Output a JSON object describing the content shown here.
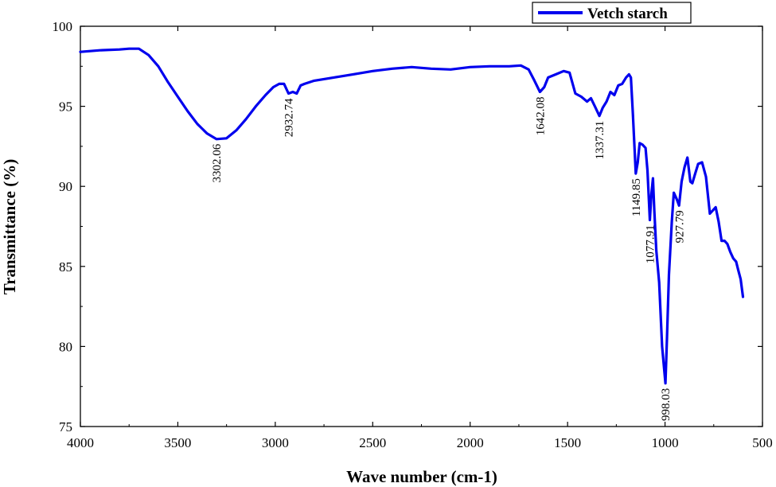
{
  "chart_data": {
    "type": "line",
    "xlabel": "Wave number (cm-1)",
    "ylabel": "Transmittance (%)",
    "xlim": [
      4000,
      500
    ],
    "ylim": [
      75,
      100
    ],
    "x_reversed": true,
    "x_ticks": [
      4000,
      3500,
      3000,
      2500,
      2000,
      1500,
      1000,
      500
    ],
    "y_ticks": [
      75,
      80,
      85,
      90,
      95,
      100
    ],
    "grid": false,
    "legend_position": "top-right",
    "series": [
      {
        "name": "Vetch starch",
        "color": "#0000ee",
        "points": [
          [
            4000,
            98.4
          ],
          [
            3900,
            98.5
          ],
          [
            3800,
            98.55
          ],
          [
            3750,
            98.6
          ],
          [
            3700,
            98.6
          ],
          [
            3650,
            98.2
          ],
          [
            3600,
            97.5
          ],
          [
            3550,
            96.5
          ],
          [
            3500,
            95.6
          ],
          [
            3450,
            94.7
          ],
          [
            3400,
            93.9
          ],
          [
            3350,
            93.3
          ],
          [
            3302,
            92.95
          ],
          [
            3250,
            93.0
          ],
          [
            3200,
            93.5
          ],
          [
            3150,
            94.2
          ],
          [
            3100,
            95.0
          ],
          [
            3050,
            95.7
          ],
          [
            3010,
            96.2
          ],
          [
            2980,
            96.4
          ],
          [
            2955,
            96.4
          ],
          [
            2932,
            95.8
          ],
          [
            2910,
            95.9
          ],
          [
            2890,
            95.8
          ],
          [
            2870,
            96.3
          ],
          [
            2850,
            96.4
          ],
          [
            2800,
            96.6
          ],
          [
            2700,
            96.8
          ],
          [
            2600,
            97.0
          ],
          [
            2500,
            97.2
          ],
          [
            2400,
            97.35
          ],
          [
            2300,
            97.45
          ],
          [
            2200,
            97.35
          ],
          [
            2100,
            97.3
          ],
          [
            2000,
            97.45
          ],
          [
            1900,
            97.5
          ],
          [
            1800,
            97.5
          ],
          [
            1740,
            97.55
          ],
          [
            1700,
            97.3
          ],
          [
            1670,
            96.6
          ],
          [
            1642,
            95.9
          ],
          [
            1620,
            96.2
          ],
          [
            1600,
            96.8
          ],
          [
            1560,
            97.0
          ],
          [
            1520,
            97.2
          ],
          [
            1490,
            97.1
          ],
          [
            1460,
            95.8
          ],
          [
            1430,
            95.6
          ],
          [
            1400,
            95.3
          ],
          [
            1380,
            95.5
          ],
          [
            1360,
            95.0
          ],
          [
            1337,
            94.4
          ],
          [
            1320,
            94.9
          ],
          [
            1300,
            95.3
          ],
          [
            1280,
            95.9
          ],
          [
            1260,
            95.7
          ],
          [
            1240,
            96.3
          ],
          [
            1220,
            96.4
          ],
          [
            1200,
            96.8
          ],
          [
            1185,
            97.0
          ],
          [
            1175,
            96.8
          ],
          [
            1165,
            94.5
          ],
          [
            1150,
            90.8
          ],
          [
            1140,
            91.5
          ],
          [
            1130,
            92.7
          ],
          [
            1115,
            92.6
          ],
          [
            1100,
            92.4
          ],
          [
            1090,
            91.0
          ],
          [
            1078,
            87.9
          ],
          [
            1070,
            89.5
          ],
          [
            1062,
            90.5
          ],
          [
            1055,
            88.5
          ],
          [
            1045,
            86.0
          ],
          [
            1030,
            84.0
          ],
          [
            1015,
            80.0
          ],
          [
            998,
            77.7
          ],
          [
            990,
            80.5
          ],
          [
            980,
            84.5
          ],
          [
            965,
            87.8
          ],
          [
            955,
            89.6
          ],
          [
            940,
            89.2
          ],
          [
            928,
            88.8
          ],
          [
            915,
            90.3
          ],
          [
            900,
            91.2
          ],
          [
            885,
            91.8
          ],
          [
            870,
            90.3
          ],
          [
            860,
            90.2
          ],
          [
            845,
            90.8
          ],
          [
            830,
            91.4
          ],
          [
            810,
            91.5
          ],
          [
            790,
            90.6
          ],
          [
            770,
            88.3
          ],
          [
            755,
            88.5
          ],
          [
            740,
            88.7
          ],
          [
            725,
            87.8
          ],
          [
            710,
            86.6
          ],
          [
            695,
            86.6
          ],
          [
            680,
            86.4
          ],
          [
            665,
            85.9
          ],
          [
            650,
            85.5
          ],
          [
            635,
            85.3
          ],
          [
            625,
            84.8
          ],
          [
            612,
            84.2
          ],
          [
            600,
            83.1
          ]
        ]
      }
    ],
    "annotations": [
      {
        "text": "3302.06",
        "x": 3302.06,
        "y": 92.95
      },
      {
        "text": "2932.74",
        "x": 2932.74,
        "y": 95.8
      },
      {
        "text": "1642.08",
        "x": 1642.08,
        "y": 95.9
      },
      {
        "text": "1337.31",
        "x": 1337.31,
        "y": 94.4
      },
      {
        "text": "1149.85",
        "x": 1149.85,
        "y": 90.8
      },
      {
        "text": "1077.91",
        "x": 1077.91,
        "y": 87.9
      },
      {
        "text": "927.79",
        "x": 927.79,
        "y": 88.8
      },
      {
        "text": "998.03",
        "x": 998.03,
        "y": 77.7
      }
    ]
  }
}
